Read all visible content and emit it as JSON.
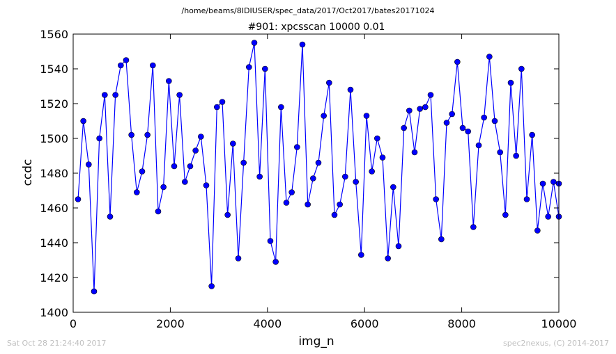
{
  "suptitle": "/home/beams/8IDIUSER/spec_data/2017/Oct2017/bates20171024",
  "footer": {
    "timestamp": "Sat Oct 28 21:24:40 2017",
    "credit": "spec2nexus, (C) 2014-2017"
  },
  "colors": {
    "line": "#0000ff",
    "marker": "#0000ff",
    "marker_edge": "#000000"
  },
  "chart_data": {
    "type": "line",
    "title": "#901: xpcsscan 10000 0.01",
    "xlabel": "img_n",
    "ylabel": "ccdc",
    "xlim": [
      0,
      10000
    ],
    "ylim": [
      1400,
      1560
    ],
    "xticks": [
      0,
      2000,
      4000,
      6000,
      8000,
      10000
    ],
    "yticks": [
      1400,
      1420,
      1440,
      1460,
      1480,
      1500,
      1520,
      1540,
      1560
    ],
    "grid": false,
    "series": [
      {
        "marker": "circle",
        "x": [
          100,
          210,
          320,
          430,
          540,
          650,
          760,
          870,
          980,
          1090,
          1200,
          1310,
          1420,
          1530,
          1640,
          1750,
          1860,
          1970,
          2080,
          2190,
          2300,
          2410,
          2520,
          2630,
          2740,
          2850,
          2960,
          3070,
          3180,
          3290,
          3400,
          3510,
          3620,
          3730,
          3840,
          3950,
          4060,
          4170,
          4280,
          4390,
          4500,
          4610,
          4720,
          4830,
          4940,
          5050,
          5160,
          5270,
          5380,
          5490,
          5600,
          5710,
          5820,
          5930,
          6040,
          6150,
          6260,
          6370,
          6480,
          6590,
          6700,
          6810,
          6920,
          7030,
          7140,
          7250,
          7360,
          7470,
          7580,
          7690,
          7800,
          7910,
          8020,
          8130,
          8240,
          8350,
          8460,
          8570,
          8680,
          8790,
          8900,
          9010,
          9120,
          9230,
          9340,
          9450,
          9560,
          9670,
          9780,
          9890,
          10000,
          10000
        ],
        "y": [
          1465,
          1510,
          1485,
          1412,
          1500,
          1525,
          1455,
          1525,
          1542,
          1545,
          1502,
          1469,
          1481,
          1502,
          1542,
          1458,
          1472,
          1533,
          1484,
          1525,
          1475,
          1484,
          1493,
          1501,
          1473,
          1415,
          1518,
          1521,
          1456,
          1497,
          1431,
          1486,
          1541,
          1555,
          1478,
          1540,
          1441,
          1429,
          1518,
          1463,
          1469,
          1495,
          1554,
          1462,
          1477,
          1486,
          1513,
          1532,
          1456,
          1462,
          1478,
          1528,
          1475,
          1433,
          1513,
          1481,
          1500,
          1489,
          1431,
          1472,
          1438,
          1506,
          1516,
          1492,
          1517,
          1518,
          1525,
          1465,
          1442,
          1509,
          1514,
          1544,
          1506,
          1504,
          1449,
          1496,
          1512,
          1547,
          1510,
          1492,
          1456,
          1532,
          1490,
          1540,
          1465,
          1502,
          1447,
          1474,
          1455,
          1475,
          1455,
          1474
        ]
      }
    ]
  }
}
